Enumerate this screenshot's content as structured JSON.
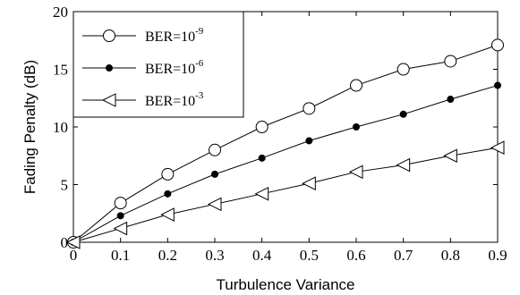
{
  "chart_data": {
    "type": "line",
    "title": "",
    "xlabel": "Turbulence Variance",
    "ylabel": "Fading Penalty (dB)",
    "xlim": [
      0,
      0.9
    ],
    "ylim": [
      0,
      20
    ],
    "x_ticks": [
      "0",
      "0.1",
      "0.2",
      "0.3",
      "0.4",
      "0.5",
      "0.6",
      "0.7",
      "0.8",
      "0.9"
    ],
    "y_ticks": [
      "0",
      "5",
      "10",
      "15",
      "20"
    ],
    "grid": false,
    "legend_position": "top-left",
    "x": [
      0,
      0.1,
      0.2,
      0.3,
      0.4,
      0.5,
      0.6,
      0.7,
      0.8,
      0.9
    ],
    "series": [
      {
        "name_base": "BER=10",
        "name_exp": "-9",
        "marker": "open-circle",
        "values": [
          0,
          3.4,
          5.9,
          8.0,
          10.0,
          11.6,
          13.6,
          15.0,
          15.7,
          17.1
        ]
      },
      {
        "name_base": "BER=10",
        "name_exp": "-6",
        "marker": "filled-dot",
        "values": [
          0,
          2.3,
          4.2,
          5.9,
          7.3,
          8.8,
          10.0,
          11.1,
          12.4,
          13.6
        ]
      },
      {
        "name_base": "BER=10",
        "name_exp": "-3",
        "marker": "open-left-triangle",
        "values": [
          0,
          1.2,
          2.4,
          3.3,
          4.2,
          5.1,
          6.1,
          6.7,
          7.5,
          8.2
        ]
      }
    ]
  }
}
